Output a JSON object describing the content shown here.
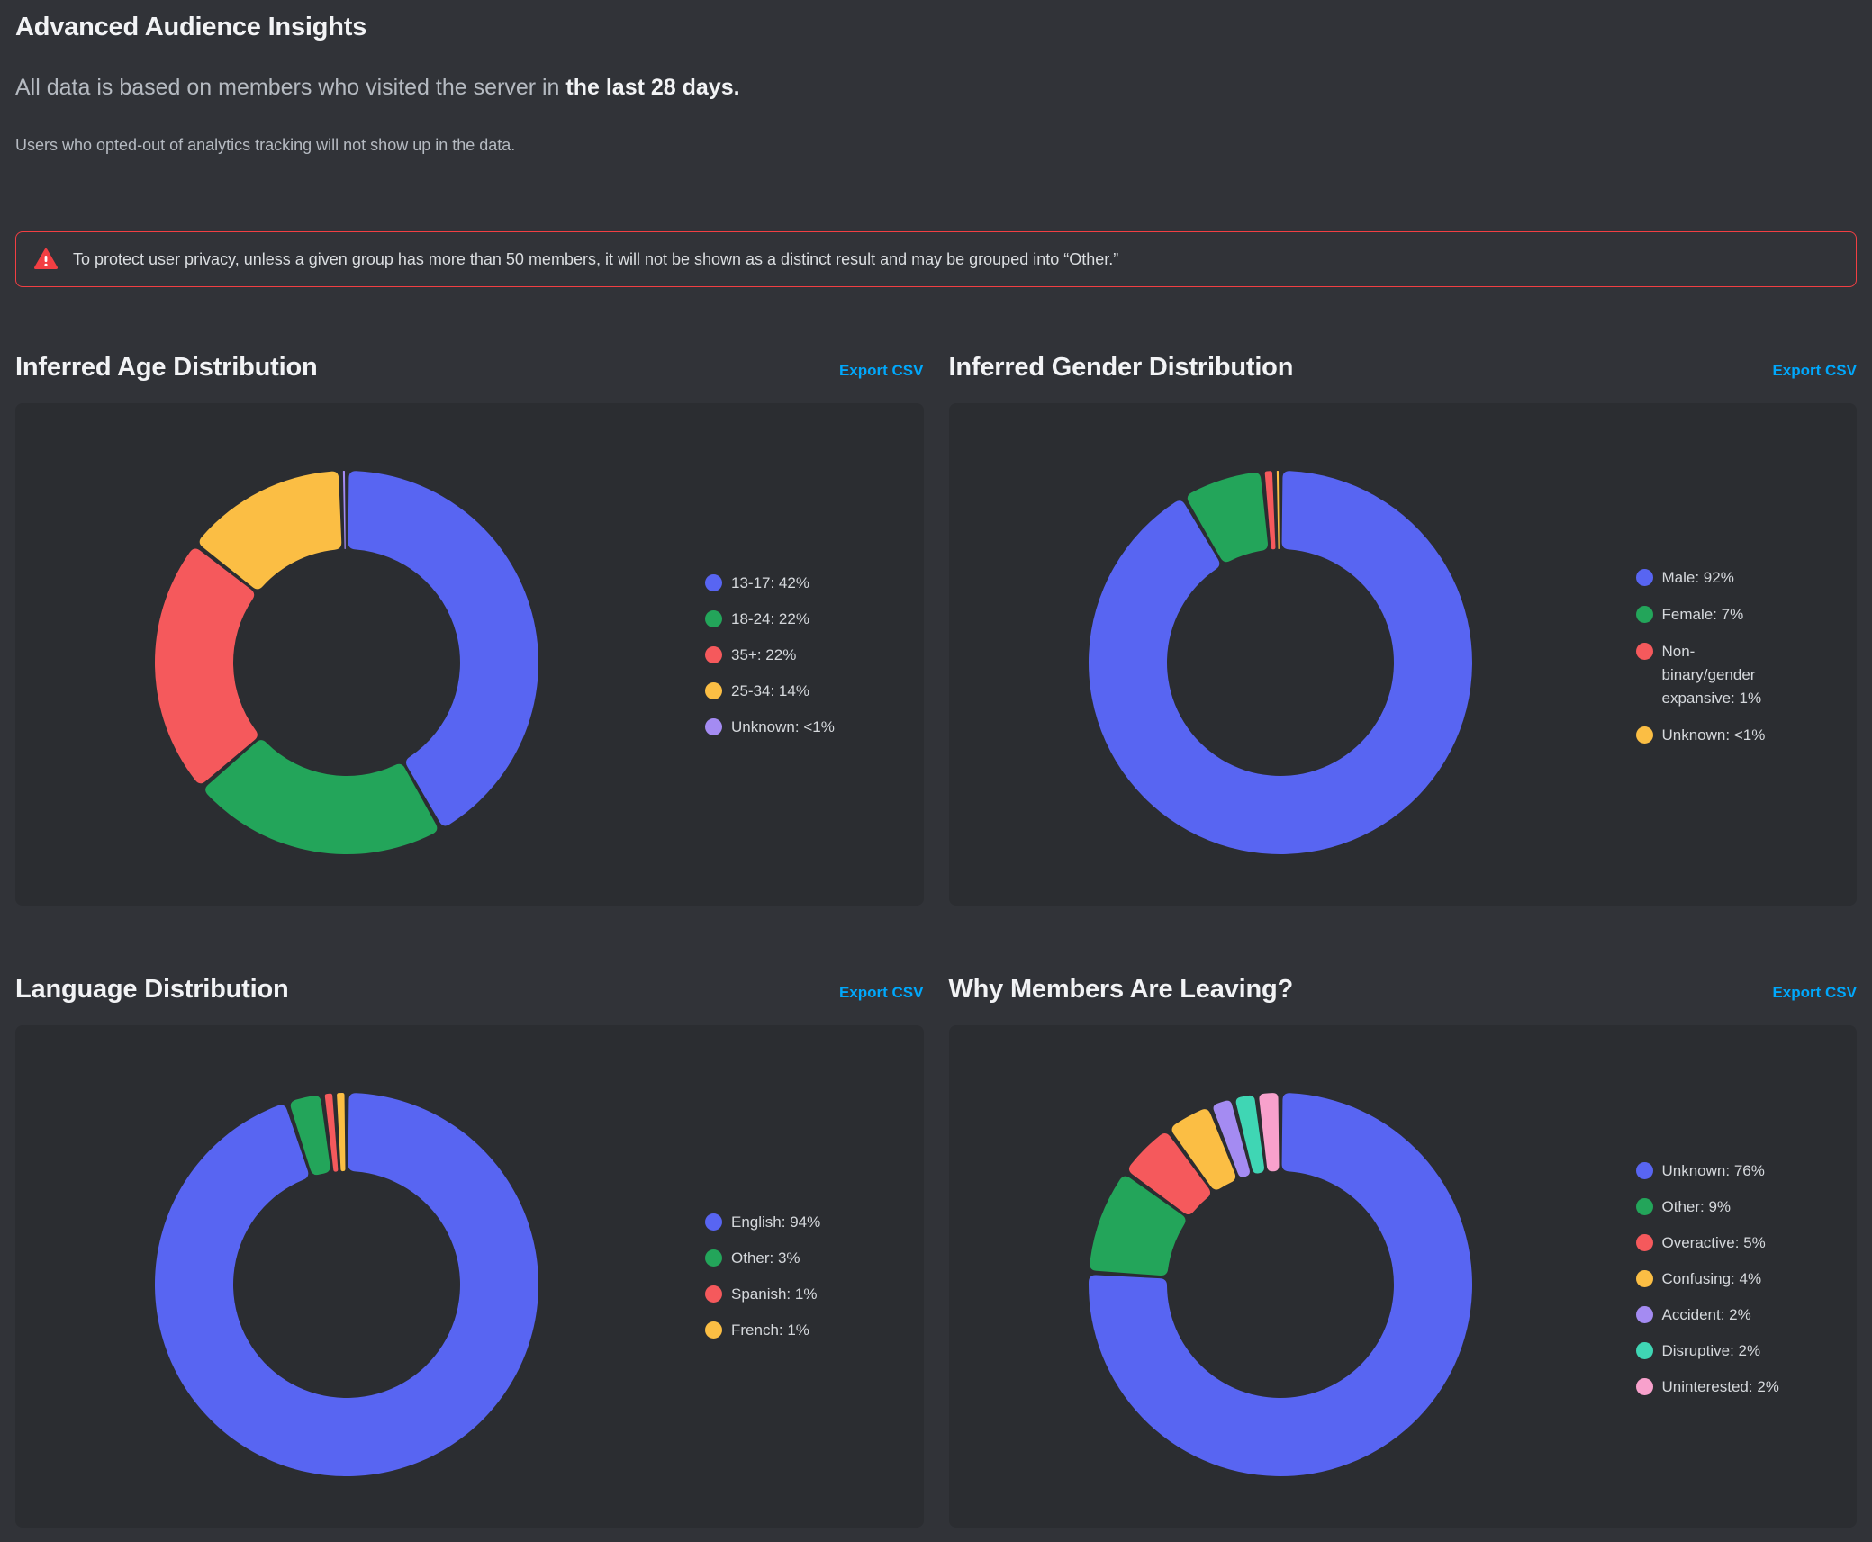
{
  "page": {
    "title": "Advanced Audience Insights",
    "subtitle": {
      "prefix": "All data is based on members who visited the server in ",
      "bold": "the last 28 days."
    },
    "note": "Users who opted-out of analytics tracking will not show up in the data.",
    "warning_text": "To protect user privacy, unless a given group has more than 50 members, it will not be shown as a distinct result and may be grouped into “Other.”",
    "colors": {
      "background": "#313338",
      "panel": "#2B2D31",
      "heading": "#F2F3F5",
      "muted_text": "#B5BAC1",
      "link_blue": "#00A8FC",
      "warning_red": "#F23F43"
    }
  },
  "chart_data": [
    {
      "type": "donut",
      "title": "Inferred Age Distribution",
      "export_label": "Export CSV",
      "legend_position": "right",
      "segments": [
        {
          "label": "13-17",
          "pct": "42%",
          "value": 42,
          "color": "#5865F2"
        },
        {
          "label": "18-24",
          "pct": "22%",
          "value": 22,
          "color": "#23A55A"
        },
        {
          "label": "35+",
          "pct": "22%",
          "value": 22,
          "color": "#F5595C"
        },
        {
          "label": "25-34",
          "pct": "14%",
          "value": 14,
          "color": "#FBBE44"
        },
        {
          "label": "Unknown",
          "pct": "<1%",
          "value": 0.5,
          "color": "#A48BF2"
        }
      ]
    },
    {
      "type": "donut",
      "title": "Inferred Gender Distribution",
      "export_label": "Export CSV",
      "legend_position": "right",
      "segments": [
        {
          "label": "Male",
          "pct": "92%",
          "value": 92,
          "color": "#5865F2"
        },
        {
          "label": "Female",
          "pct": "7%",
          "value": 7,
          "color": "#23A55A"
        },
        {
          "label": "Non-binary/gender expansive",
          "pct": "1%",
          "value": 1,
          "color": "#F5595C",
          "legend_lines": [
            "Non-",
            "binary/gender",
            "expansive: 1%"
          ]
        },
        {
          "label": "Unknown",
          "pct": "<1%",
          "value": 0.5,
          "color": "#FBBE44"
        }
      ]
    },
    {
      "type": "donut",
      "title": "Language Distribution",
      "export_label": "Export CSV",
      "legend_position": "right",
      "segments": [
        {
          "label": "English",
          "pct": "94%",
          "value": 94,
          "color": "#5865F2"
        },
        {
          "label": "Other",
          "pct": "3%",
          "value": 3,
          "color": "#23A55A"
        },
        {
          "label": "Spanish",
          "pct": "1%",
          "value": 1,
          "color": "#F5595C"
        },
        {
          "label": "French",
          "pct": "1%",
          "value": 1,
          "color": "#FBBE44"
        }
      ]
    },
    {
      "type": "donut",
      "title": "Why Members Are Leaving?",
      "export_label": "Export CSV",
      "legend_position": "right",
      "segments": [
        {
          "label": "Unknown",
          "pct": "76%",
          "value": 76,
          "color": "#5865F2"
        },
        {
          "label": "Other",
          "pct": "9%",
          "value": 9,
          "color": "#23A55A"
        },
        {
          "label": "Overactive",
          "pct": "5%",
          "value": 5,
          "color": "#F5595C"
        },
        {
          "label": "Confusing",
          "pct": "4%",
          "value": 4,
          "color": "#FBBE44"
        },
        {
          "label": "Accident",
          "pct": "2%",
          "value": 2,
          "color": "#A48BF2"
        },
        {
          "label": "Disruptive",
          "pct": "2%",
          "value": 2,
          "color": "#3FD6B4"
        },
        {
          "label": "Uninterested",
          "pct": "2%",
          "value": 2,
          "color": "#F8A1CC"
        }
      ]
    }
  ]
}
